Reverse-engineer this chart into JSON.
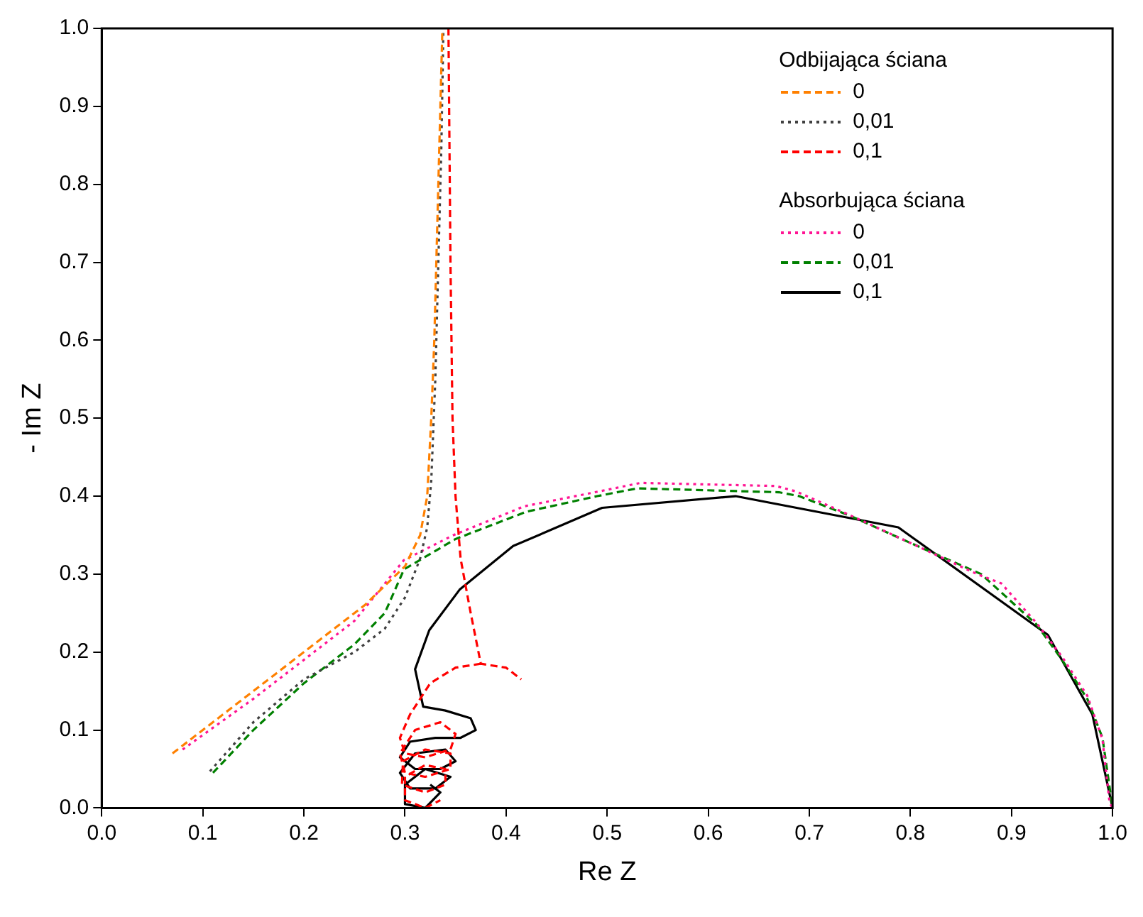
{
  "chart_data": {
    "type": "line",
    "xlabel": "Re Z",
    "ylabel": "- Im Z",
    "xlim": [
      0,
      1
    ],
    "ylim": [
      0,
      1
    ],
    "xticks": [
      {
        "value": 0,
        "label": "0.0"
      },
      {
        "value": 0.1,
        "label": "0.1"
      },
      {
        "value": 0.2,
        "label": "0.2"
      },
      {
        "value": 0.3,
        "label": "0.3"
      },
      {
        "value": 0.4,
        "label": "0.4"
      },
      {
        "value": 0.5,
        "label": "0.5"
      },
      {
        "value": 0.6,
        "label": "0.6"
      },
      {
        "value": 0.7,
        "label": "0.7"
      },
      {
        "value": 0.8,
        "label": "0.8"
      },
      {
        "value": 0.9,
        "label": "0.9"
      },
      {
        "value": 1,
        "label": "1.0"
      }
    ],
    "yticks": [
      {
        "value": 0,
        "label": "0.0"
      },
      {
        "value": 0.1,
        "label": "0.1"
      },
      {
        "value": 0.2,
        "label": "0.2"
      },
      {
        "value": 0.3,
        "label": "0.3"
      },
      {
        "value": 0.4,
        "label": "0.4"
      },
      {
        "value": 0.5,
        "label": "0.5"
      },
      {
        "value": 0.6,
        "label": "0.6"
      },
      {
        "value": 0.7,
        "label": "0.7"
      },
      {
        "value": 0.8,
        "label": "0.8"
      },
      {
        "value": 0.9,
        "label": "0.9"
      },
      {
        "value": 1,
        "label": "1.0"
      }
    ],
    "annotations": [
      "Odbijająca ściana",
      "Absorbująca ściana"
    ],
    "legend": "top right",
    "marker": "none",
    "series": [
      {
        "name": "0",
        "color": "#ff8000",
        "line_style": "dashed",
        "x": [
          0.07,
          0.12,
          0.17,
          0.22,
          0.26,
          0.3,
          0.315,
          0.322,
          0.326,
          0.329,
          0.331,
          0.333,
          0.335,
          0.337
        ],
        "values": [
          0.07,
          0.12,
          0.17,
          0.22,
          0.26,
          0.31,
          0.35,
          0.4,
          0.5,
          0.6,
          0.7,
          0.8,
          0.9,
          1.0
        ]
      },
      {
        "name": "0,01",
        "color": "#404040",
        "line_style": "dotted",
        "x": [
          0.107,
          0.15,
          0.2,
          0.25,
          0.28,
          0.3,
          0.315,
          0.322,
          0.326,
          0.33,
          0.333,
          0.336,
          0.338
        ],
        "values": [
          0.047,
          0.11,
          0.165,
          0.2,
          0.23,
          0.27,
          0.32,
          0.36,
          0.42,
          0.55,
          0.7,
          0.85,
          1.0
        ]
      },
      {
        "name": "0,1",
        "color": "#ff0000",
        "line_style": "dashed",
        "x": [
          0.343,
          0.345,
          0.347,
          0.35,
          0.355,
          0.365,
          0.375,
          0.4,
          0.415,
          null,
          0.375,
          0.35,
          0.325,
          0.305,
          0.295,
          0.3,
          0.32,
          0.345,
          0.35,
          0.335,
          0.31,
          0.295,
          0.3,
          0.32,
          0.345,
          0.345,
          0.32,
          0.298,
          0.297,
          0.32,
          0.34,
          0.34,
          0.32,
          0.3,
          0.3,
          0.32,
          0.335
        ],
        "values": [
          1.0,
          0.7,
          0.5,
          0.4,
          0.32,
          0.25,
          0.185,
          0.18,
          0.165,
          null,
          0.185,
          0.18,
          0.16,
          0.12,
          0.09,
          0.07,
          0.065,
          0.075,
          0.095,
          0.11,
          0.1,
          0.07,
          0.045,
          0.04,
          0.05,
          0.07,
          0.075,
          0.06,
          0.03,
          0.02,
          0.03,
          0.05,
          0.055,
          0.04,
          0.01,
          0.0,
          0.01
        ]
      },
      {
        "name": "0",
        "color": "#ff1493",
        "line_style": "dotted",
        "x": [
          0.08,
          0.15,
          0.2,
          0.25,
          0.299,
          0.348,
          0.418,
          0.488,
          0.533,
          0.667,
          0.687,
          0.736,
          0.8,
          0.866,
          0.89,
          0.925,
          0.95,
          0.975,
          0.99,
          0.997,
          1.0
        ],
        "values": [
          0.075,
          0.14,
          0.19,
          0.24,
          0.318,
          0.35,
          0.387,
          0.405,
          0.417,
          0.413,
          0.406,
          0.378,
          0.34,
          0.3,
          0.288,
          0.237,
          0.194,
          0.144,
          0.088,
          0.007,
          0.0
        ]
      },
      {
        "name": "0,01",
        "color": "#008000",
        "line_style": "dashed",
        "x": [
          0.11,
          0.15,
          0.2,
          0.25,
          0.28,
          0.299,
          0.35,
          0.42,
          0.49,
          0.53,
          0.67,
          0.69,
          0.74,
          0.8,
          0.87,
          0.925,
          0.95,
          0.975,
          0.99,
          1.0
        ],
        "values": [
          0.045,
          0.1,
          0.16,
          0.21,
          0.25,
          0.306,
          0.345,
          0.38,
          0.4,
          0.41,
          0.405,
          0.4,
          0.375,
          0.34,
          0.3,
          0.235,
          0.19,
          0.14,
          0.09,
          0.0
        ]
      },
      {
        "name": "0,1",
        "color": "#000000",
        "line_style": "solid",
        "x": [
          1.0,
          0.98,
          0.936,
          0.788,
          0.627,
          0.495,
          0.407,
          0.354,
          0.324,
          0.31,
          0.318,
          0.34,
          0.365,
          0.37,
          0.355,
          0.33,
          0.305,
          0.295,
          0.31,
          0.335,
          0.35,
          0.34,
          0.31,
          0.295,
          0.305,
          0.33,
          0.345,
          0.32,
          0.3,
          0.3,
          0.32,
          0.335,
          0.325
        ],
        "values": [
          0.0,
          0.12,
          0.222,
          0.36,
          0.4,
          0.385,
          0.336,
          0.28,
          0.228,
          0.178,
          0.13,
          0.125,
          0.115,
          0.1,
          0.09,
          0.09,
          0.085,
          0.065,
          0.05,
          0.05,
          0.06,
          0.075,
          0.07,
          0.045,
          0.025,
          0.025,
          0.04,
          0.05,
          0.03,
          0.005,
          0.0,
          0.02,
          0.03
        ]
      }
    ]
  }
}
